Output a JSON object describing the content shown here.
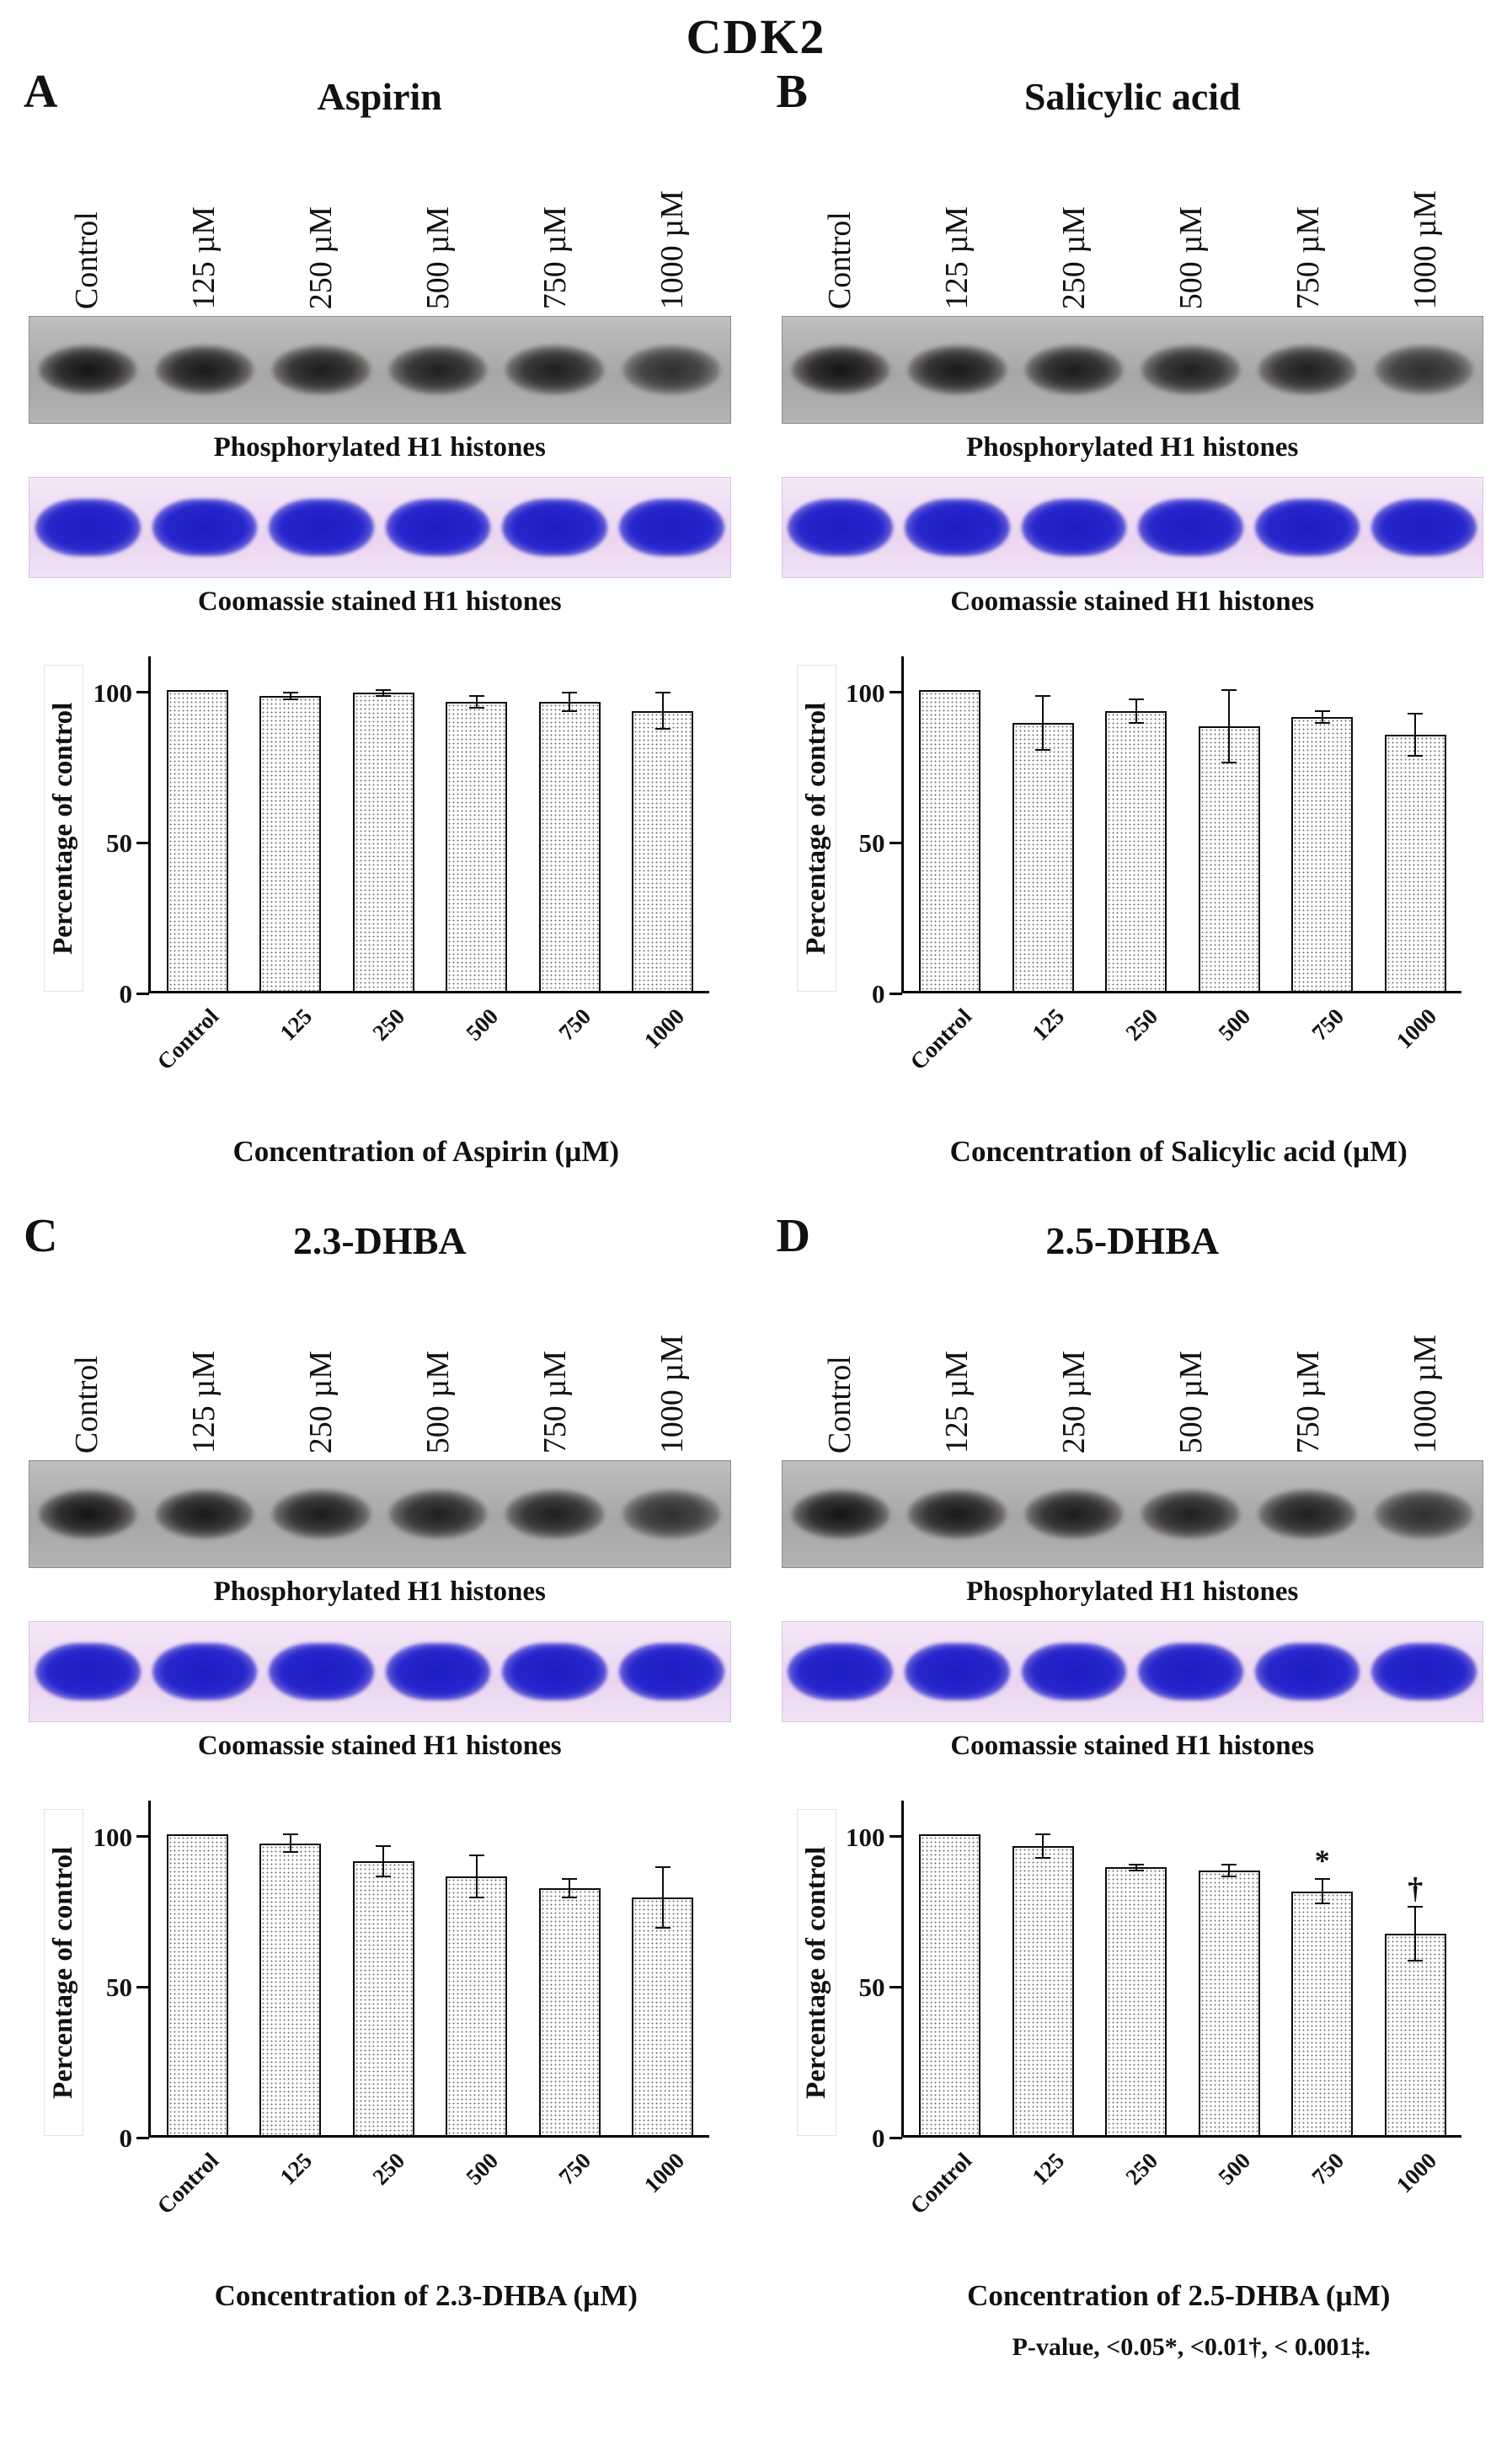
{
  "figure_title": "CDK2",
  "footnote": "P-value, <0.05*, <0.01†, < 0.001‡.",
  "lane_labels": [
    "Control",
    "125 µM",
    "250 µM",
    "500 µM",
    "750 µM",
    "1000 µM"
  ],
  "blot_captions": {
    "phospho": "Phosphorylated H1 histones",
    "coomassie": "Coomassie stained H1 histones"
  },
  "panels": [
    {
      "letter": "A",
      "title": "Aspirin"
    },
    {
      "letter": "B",
      "title": "Salicylic acid"
    },
    {
      "letter": "C",
      "title": "2.3-DHBA"
    },
    {
      "letter": "D",
      "title": "2.5-DHBA"
    }
  ],
  "chart_data": [
    {
      "type": "bar",
      "title": "Aspirin",
      "categories": [
        "Control",
        "125",
        "250",
        "500",
        "750",
        "1000"
      ],
      "values": [
        100,
        98,
        99,
        96,
        96,
        93
      ],
      "errors": [
        0,
        1,
        1,
        2,
        3,
        6
      ],
      "annotations": [
        "",
        "",
        "",
        "",
        "",
        ""
      ],
      "xlabel": "Concentration of Aspirin (µM)",
      "ylabel": "Percentage of control",
      "yticks": [
        0,
        50,
        100
      ],
      "ylim": [
        0,
        112
      ],
      "grid": false,
      "legend": "none"
    },
    {
      "type": "bar",
      "title": "Salicylic acid",
      "categories": [
        "Control",
        "125",
        "250",
        "500",
        "750",
        "1000"
      ],
      "values": [
        100,
        89,
        93,
        88,
        91,
        85
      ],
      "errors": [
        0,
        9,
        4,
        12,
        2,
        7
      ],
      "annotations": [
        "",
        "",
        "",
        "",
        "",
        ""
      ],
      "xlabel": "Concentration of Salicylic acid (µM)",
      "ylabel": "Percentage of control",
      "yticks": [
        0,
        50,
        100
      ],
      "ylim": [
        0,
        112
      ],
      "grid": false,
      "legend": "none"
    },
    {
      "type": "bar",
      "title": "2.3-DHBA",
      "categories": [
        "Control",
        "125",
        "250",
        "500",
        "750",
        "1000"
      ],
      "values": [
        100,
        97,
        91,
        86,
        82,
        79
      ],
      "errors": [
        0,
        3,
        5,
        7,
        3,
        10
      ],
      "annotations": [
        "",
        "",
        "",
        "",
        "",
        ""
      ],
      "xlabel": "Concentration of 2.3-DHBA (µM)",
      "ylabel": "Percentage of control",
      "yticks": [
        0,
        50,
        100
      ],
      "ylim": [
        0,
        112
      ],
      "grid": false,
      "legend": "none"
    },
    {
      "type": "bar",
      "title": "2.5-DHBA",
      "categories": [
        "Control",
        "125",
        "250",
        "500",
        "750",
        "1000"
      ],
      "values": [
        100,
        96,
        89,
        88,
        81,
        67
      ],
      "errors": [
        0,
        4,
        1,
        2,
        4,
        9
      ],
      "annotations": [
        "",
        "",
        "",
        "",
        "*",
        "†"
      ],
      "xlabel": "Concentration of 2.5-DHBA (µM)",
      "ylabel": "Percentage of control",
      "yticks": [
        0,
        50,
        100
      ],
      "ylim": [
        0,
        112
      ],
      "grid": false,
      "legend": "none"
    }
  ]
}
